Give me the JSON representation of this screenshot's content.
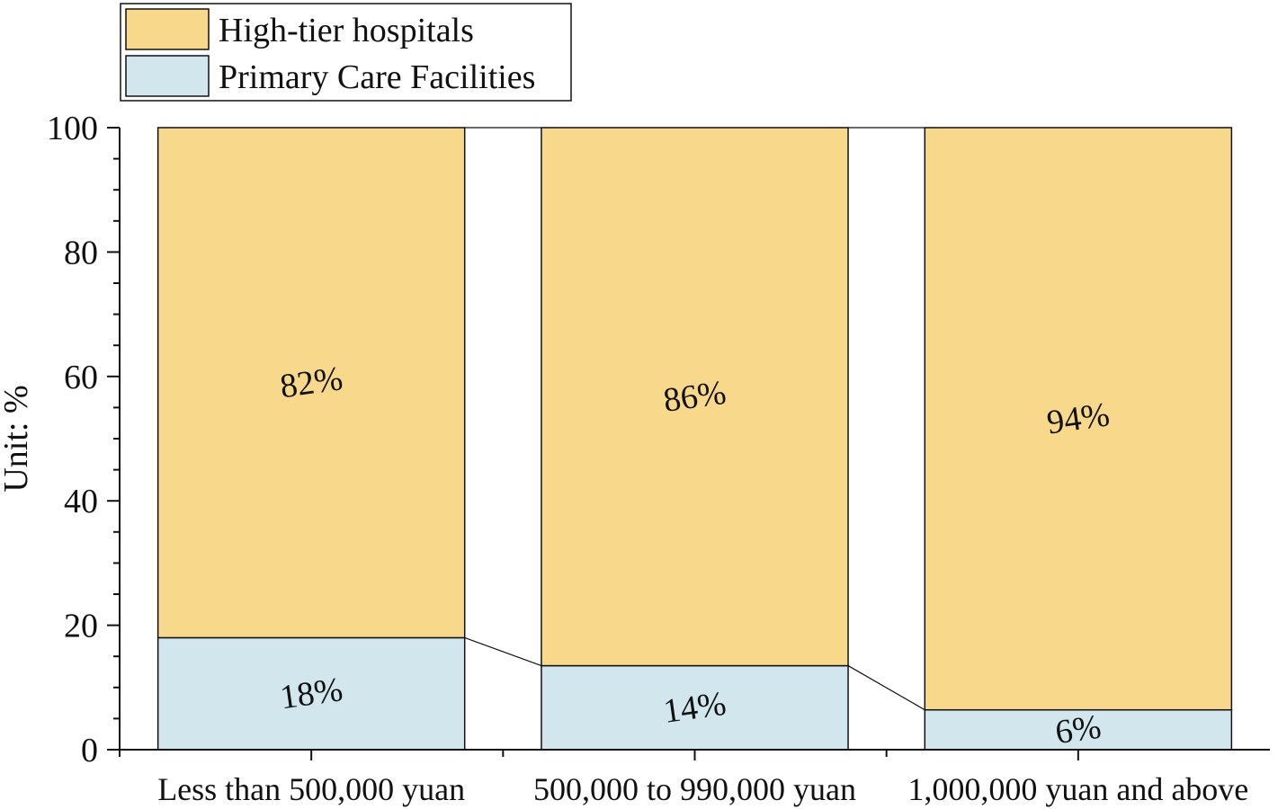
{
  "chart_data": {
    "type": "bar",
    "stacked": true,
    "percent_stacked": true,
    "categories": [
      "Less than 500,000 yuan",
      "500,000 to 990,000 yuan",
      "1,000,000 yuan and above"
    ],
    "series": [
      {
        "name": "Primary Care Facilities",
        "values": [
          18,
          13.5,
          6.4
        ],
        "labels": [
          "18%",
          "14%",
          "6%"
        ],
        "color": "#d2e6ee"
      },
      {
        "name": "High-tier hospitals",
        "values": [
          82,
          86.5,
          93.6
        ],
        "labels": [
          "82%",
          "86%",
          "94%"
        ],
        "color": "#f8d98c"
      }
    ],
    "title": "",
    "xlabel": "",
    "ylabel": "Unit: %",
    "ylim": [
      0,
      100
    ],
    "yticks": [
      "0",
      "20",
      "40",
      "60",
      "80",
      "100"
    ],
    "legend_order": [
      "High-tier hospitals",
      "Primary Care Facilities"
    ],
    "legend_position": "top-left",
    "connector_lines": true,
    "grid": false
  }
}
